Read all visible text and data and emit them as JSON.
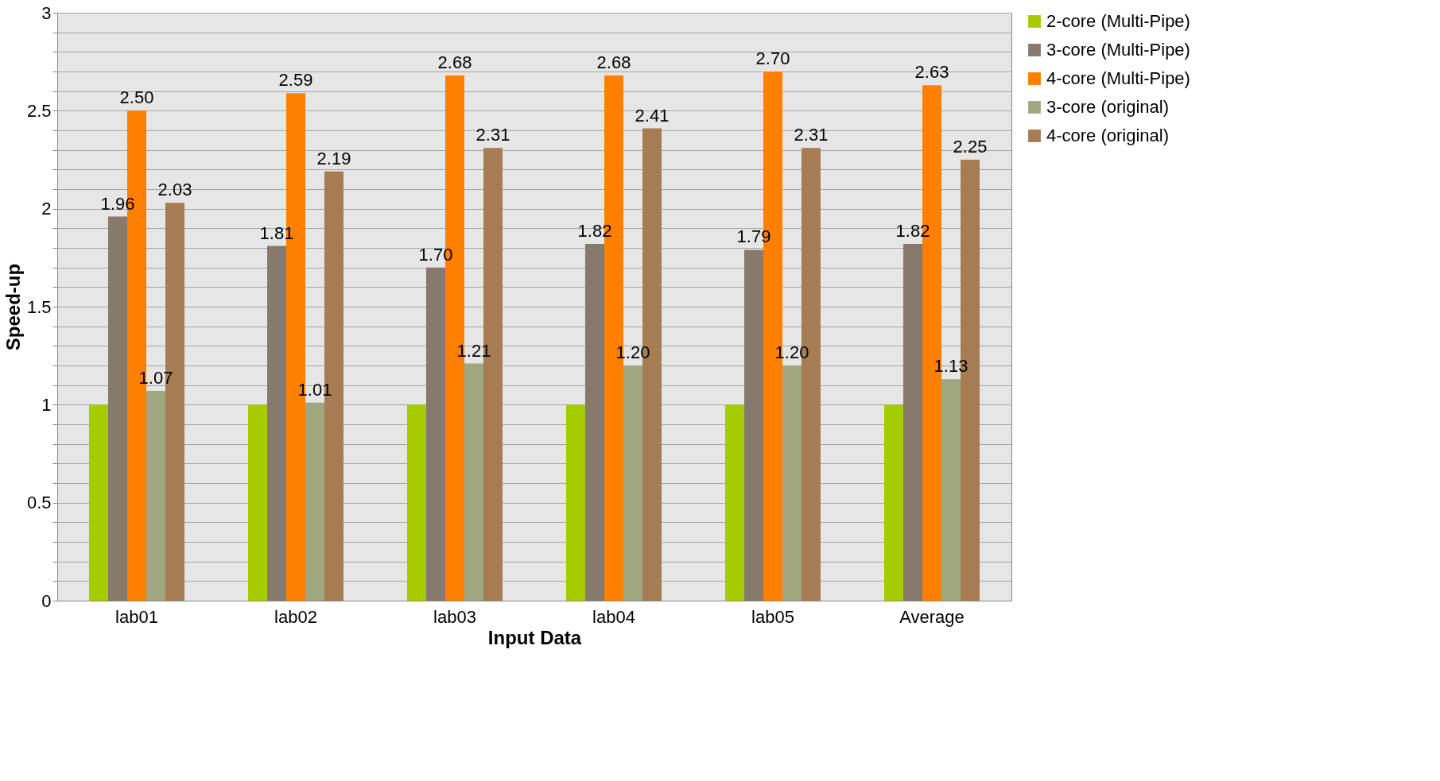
{
  "chart_data": {
    "type": "bar",
    "xlabel": "Input Data",
    "ylabel": "Speed-up",
    "categories": [
      "lab01",
      "lab02",
      "lab03",
      "lab04",
      "lab05",
      "Average"
    ],
    "series": [
      {
        "name": "2-core  (Multi-Pipe)",
        "color": "#a5cc00",
        "values": [
          1.0,
          1.0,
          1.0,
          1.0,
          1.0,
          1.0
        ],
        "value_labels": [
          null,
          null,
          null,
          null,
          null,
          null
        ]
      },
      {
        "name": "3-core  (Multi-Pipe)",
        "color": "#857a6c",
        "values": [
          1.96,
          1.81,
          1.7,
          1.82,
          1.79,
          1.82
        ],
        "value_labels": [
          "1.96",
          "1.81",
          "1.70",
          "1.82",
          "1.79",
          "1.82"
        ]
      },
      {
        "name": "4-core  (Multi-Pipe)",
        "color": "#ff7f00",
        "values": [
          2.5,
          2.59,
          2.68,
          2.68,
          2.7,
          2.63
        ],
        "value_labels": [
          "2.50",
          "2.59",
          "2.68",
          "2.68",
          "2.70",
          "2.63"
        ]
      },
      {
        "name": "3-core (original)",
        "color": "#a0a77e",
        "values": [
          1.07,
          1.01,
          1.21,
          1.2,
          1.2,
          1.13
        ],
        "value_labels": [
          "1.07",
          "1.01",
          "1.21",
          "1.20",
          "1.20",
          "1.13"
        ]
      },
      {
        "name": "4-core (original)",
        "color": "#a67c52",
        "values": [
          2.03,
          2.19,
          2.31,
          2.41,
          2.31,
          2.25
        ],
        "value_labels": [
          "2.03",
          "2.19",
          "2.31",
          "2.41",
          "2.31",
          "2.25"
        ]
      }
    ],
    "ylim": [
      0,
      3
    ],
    "yticks": [
      0,
      {
        "value": 0.1,
        "label": null
      },
      {
        "value": 0.2,
        "label": null
      },
      {
        "value": 0.3,
        "label": null
      },
      {
        "value": 0.4,
        "label": null
      },
      0.5,
      {
        "value": 0.6,
        "label": null
      },
      {
        "value": 0.7,
        "label": null
      },
      {
        "value": 0.8,
        "label": null
      },
      {
        "value": 0.9,
        "label": null
      },
      1,
      {
        "value": 1.1,
        "label": null
      },
      {
        "value": 1.2,
        "label": null
      },
      {
        "value": 1.3,
        "label": null
      },
      {
        "value": 1.4,
        "label": null
      },
      1.5,
      {
        "value": 1.6,
        "label": null
      },
      {
        "value": 1.7,
        "label": null
      },
      {
        "value": 1.8,
        "label": null
      },
      {
        "value": 1.9,
        "label": null
      },
      2,
      {
        "value": 2.1,
        "label": null
      },
      {
        "value": 2.2,
        "label": null
      },
      {
        "value": 2.3,
        "label": null
      },
      {
        "value": 2.4,
        "label": null
      },
      2.5,
      {
        "value": 2.6,
        "label": null
      },
      {
        "value": 2.7,
        "label": null
      },
      {
        "value": 2.8,
        "label": null
      },
      {
        "value": 2.9,
        "label": null
      },
      3
    ],
    "grid": "y",
    "legend": "right"
  }
}
